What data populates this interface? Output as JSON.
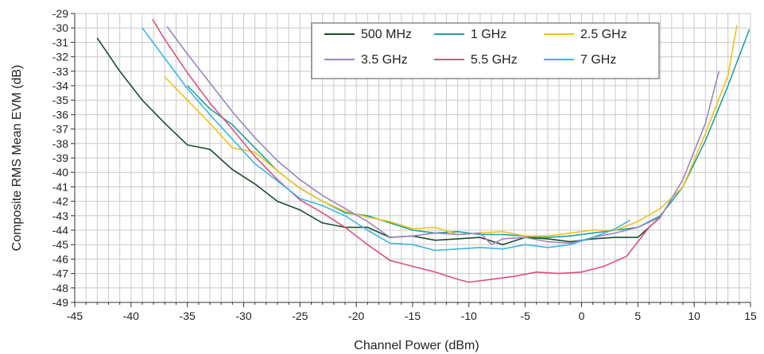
{
  "chart_data": {
    "type": "line",
    "title": "",
    "xlabel": "Channel Power (dBm)",
    "ylabel": "Composite RMS Mean EVM (dB)",
    "xlim": [
      -45,
      15
    ],
    "ylim": [
      -49,
      -29
    ],
    "x_major_step": 5,
    "x_minor_step": 1,
    "y_step": 1,
    "grid": true,
    "legend_position": "top-right",
    "series": [
      {
        "name": "500 MHz",
        "color": "#1b4d2e",
        "points": [
          [
            -43.0,
            -30.7
          ],
          [
            -41,
            -33
          ],
          [
            -39,
            -35
          ],
          [
            -37,
            -36.6
          ],
          [
            -35,
            -38.1
          ],
          [
            -33,
            -38.4
          ],
          [
            -31,
            -39.8
          ],
          [
            -29,
            -40.8
          ],
          [
            -27,
            -42
          ],
          [
            -25,
            -42.6
          ],
          [
            -23,
            -43.5
          ],
          [
            -21,
            -43.8
          ],
          [
            -19,
            -43.8
          ],
          [
            -17,
            -44.5
          ],
          [
            -15,
            -44.4
          ],
          [
            -13,
            -44.7
          ],
          [
            -11,
            -44.6
          ],
          [
            -9,
            -44.5
          ],
          [
            -7,
            -45
          ],
          [
            -5,
            -44.5
          ],
          [
            -3,
            -44.6
          ],
          [
            -1,
            -44.8
          ],
          [
            1,
            -44.6
          ],
          [
            3,
            -44.5
          ],
          [
            5,
            -44.5
          ],
          [
            7,
            -43.1
          ]
        ]
      },
      {
        "name": "1 GHz",
        "color": "#1aa3a0",
        "points": [
          [
            -35,
            -34
          ],
          [
            -33,
            -35.6
          ],
          [
            -31,
            -36.7
          ],
          [
            -29,
            -38.3
          ],
          [
            -27,
            -39.9
          ],
          [
            -25,
            -41.1
          ],
          [
            -23,
            -42
          ],
          [
            -21,
            -42.8
          ],
          [
            -19,
            -43
          ],
          [
            -17,
            -43.5
          ],
          [
            -15,
            -44
          ],
          [
            -13,
            -44.2
          ],
          [
            -11,
            -44.1
          ],
          [
            -9,
            -44.3
          ],
          [
            -7,
            -44.3
          ],
          [
            -5,
            -44.4
          ],
          [
            -3,
            -44.5
          ],
          [
            -1,
            -44.4
          ],
          [
            1,
            -44.2
          ],
          [
            3,
            -44
          ],
          [
            5,
            -43.8
          ],
          [
            7,
            -43
          ],
          [
            9,
            -41
          ],
          [
            11,
            -37.8
          ],
          [
            13,
            -34
          ],
          [
            14.9,
            -30.1
          ]
        ]
      },
      {
        "name": "2.5 GHz",
        "color": "#f2c21a",
        "points": [
          [
            -37,
            -33.4
          ],
          [
            -35,
            -35
          ],
          [
            -33,
            -36.6
          ],
          [
            -31,
            -38.3
          ],
          [
            -29,
            -38.6
          ],
          [
            -27,
            -39.9
          ],
          [
            -25,
            -41.1
          ],
          [
            -23,
            -42
          ],
          [
            -21,
            -42.7
          ],
          [
            -19,
            -43.1
          ],
          [
            -17,
            -43.4
          ],
          [
            -15,
            -43.9
          ],
          [
            -13,
            -43.8
          ],
          [
            -11,
            -44.3
          ],
          [
            -9,
            -44.2
          ],
          [
            -7,
            -44.1
          ],
          [
            -5,
            -44.4
          ],
          [
            -3,
            -44.4
          ],
          [
            -1,
            -44.2
          ],
          [
            1,
            -44
          ],
          [
            3,
            -44
          ],
          [
            5,
            -43.4
          ],
          [
            7,
            -42.5
          ],
          [
            9,
            -41
          ],
          [
            11,
            -37.3
          ],
          [
            13,
            -33.3
          ],
          [
            13.8,
            -29.8
          ]
        ]
      },
      {
        "name": "3.5 GHz",
        "color": "#9b84c1",
        "points": [
          [
            -36.8,
            -29.9
          ],
          [
            -35,
            -31.8
          ],
          [
            -33,
            -33.8
          ],
          [
            -31,
            -35.8
          ],
          [
            -29,
            -37.6
          ],
          [
            -27,
            -39.2
          ],
          [
            -25,
            -40.5
          ],
          [
            -23,
            -41.6
          ],
          [
            -21,
            -42.5
          ],
          [
            -19,
            -43.4
          ],
          [
            -17,
            -44.5
          ],
          [
            -15,
            -44.4
          ],
          [
            -13,
            -44.2
          ],
          [
            -11,
            -44.3
          ],
          [
            -9,
            -44.2
          ],
          [
            -8,
            -45
          ],
          [
            -7,
            -44.6
          ],
          [
            -5,
            -44.5
          ],
          [
            -3,
            -44.8
          ],
          [
            -1,
            -44.9
          ],
          [
            1,
            -44.5
          ],
          [
            3,
            -44.2
          ],
          [
            5,
            -43.8
          ],
          [
            7,
            -43.1
          ],
          [
            9,
            -40.5
          ],
          [
            11,
            -36.6
          ],
          [
            12.2,
            -33
          ]
        ]
      },
      {
        "name": "5.5 GHz",
        "color": "#e0507e",
        "points": [
          [
            -38.1,
            -29.4
          ],
          [
            -37,
            -30.8
          ],
          [
            -35,
            -33.1
          ],
          [
            -33,
            -35.2
          ],
          [
            -31,
            -37
          ],
          [
            -29,
            -38.9
          ],
          [
            -27,
            -40.5
          ],
          [
            -25,
            -41.9
          ],
          [
            -23,
            -42.8
          ],
          [
            -21,
            -43.8
          ],
          [
            -19,
            -45
          ],
          [
            -17,
            -46.1
          ],
          [
            -15,
            -46.5
          ],
          [
            -13,
            -46.9
          ],
          [
            -11,
            -47.4
          ],
          [
            -10,
            -47.6
          ],
          [
            -8,
            -47.4
          ],
          [
            -6,
            -47.2
          ],
          [
            -4,
            -46.9
          ],
          [
            -2,
            -47
          ],
          [
            0,
            -46.9
          ],
          [
            2,
            -46.5
          ],
          [
            4,
            -45.8
          ],
          [
            5,
            -44.8
          ],
          [
            6,
            -43.8
          ],
          [
            7,
            -43.1
          ]
        ]
      },
      {
        "name": "7 GHz",
        "color": "#3db4e8",
        "points": [
          [
            -39,
            -30
          ],
          [
            -37,
            -32.1
          ],
          [
            -35,
            -34.2
          ],
          [
            -33,
            -36
          ],
          [
            -31,
            -37.7
          ],
          [
            -29,
            -39.4
          ],
          [
            -27,
            -40.6
          ],
          [
            -25,
            -41.8
          ],
          [
            -23,
            -42.3
          ],
          [
            -21,
            -43
          ],
          [
            -19,
            -44
          ],
          [
            -17,
            -44.9
          ],
          [
            -15,
            -45
          ],
          [
            -13,
            -45.4
          ],
          [
            -11,
            -45.3
          ],
          [
            -9,
            -45.2
          ],
          [
            -7,
            -45.3
          ],
          [
            -5,
            -45
          ],
          [
            -3,
            -45.2
          ],
          [
            -1,
            -45
          ],
          [
            1,
            -44.5
          ],
          [
            3,
            -43.9
          ],
          [
            4.3,
            -43.3
          ]
        ]
      }
    ]
  }
}
